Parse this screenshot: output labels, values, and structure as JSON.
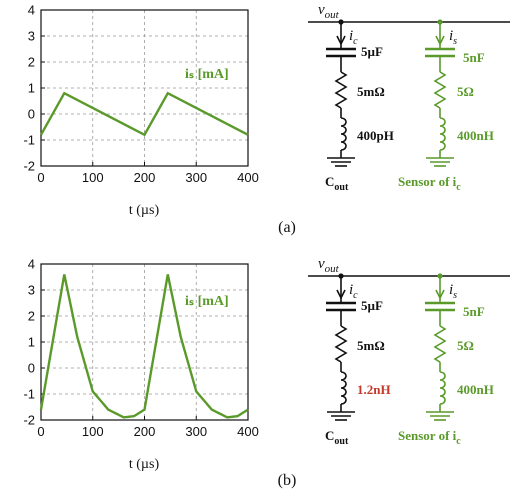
{
  "colors": {
    "green": "#5a9a2a",
    "red": "#c0392b",
    "black": "#111111",
    "grid": "#999999"
  },
  "chart_data": [
    {
      "type": "line",
      "panel_caption": "(a)",
      "xlabel": "t (µs)",
      "ylabel": "",
      "xlim": [
        0,
        400
      ],
      "ylim": [
        -2,
        4
      ],
      "x_ticks": [
        "0",
        "100",
        "200",
        "300",
        "400"
      ],
      "y_ticks": [
        "4",
        "3",
        "2",
        "1",
        "0",
        "-1",
        "-2"
      ],
      "grid": true,
      "series": [
        {
          "name": "iₛ [mA]",
          "x": [
            0,
            45,
            200,
            245,
            400
          ],
          "y": [
            -0.8,
            0.8,
            -0.8,
            0.8,
            -0.8
          ]
        }
      ]
    },
    {
      "type": "line",
      "panel_caption": "(b)",
      "xlabel": "t (µs)",
      "ylabel": "",
      "xlim": [
        0,
        400
      ],
      "ylim": [
        -2,
        4
      ],
      "x_ticks": [
        "0",
        "100",
        "200",
        "300",
        "400"
      ],
      "y_ticks": [
        "4",
        "3",
        "2",
        "1",
        "0",
        "-1",
        "-2"
      ],
      "grid": true,
      "series": [
        {
          "name": "iₛ [mA]",
          "x": [
            0,
            45,
            70,
            100,
            130,
            160,
            180,
            200,
            245,
            270,
            300,
            330,
            360,
            380,
            400
          ],
          "y": [
            -1.6,
            3.6,
            1.2,
            -0.9,
            -1.6,
            -1.9,
            -1.85,
            -1.6,
            3.6,
            1.2,
            -0.9,
            -1.6,
            -1.9,
            -1.85,
            -1.6
          ]
        }
      ]
    }
  ],
  "circuits": [
    {
      "vout": "v",
      "vout_sub": "out",
      "ic_label": "i",
      "ic_sub": "c",
      "is_label": "i",
      "is_sub": "s",
      "c_left": "5µF",
      "r_left": "5mΩ",
      "l_left": "400pH",
      "c_right": "5nF",
      "r_right": "5Ω",
      "l_right": "400nH",
      "left_name": "C",
      "left_name_sub": "out",
      "right_name": "Sensor of i",
      "right_name_sub": "c",
      "l_left_red": false
    },
    {
      "vout": "v",
      "vout_sub": "out",
      "ic_label": "i",
      "ic_sub": "c",
      "is_label": "i",
      "is_sub": "s",
      "c_left": "5µF",
      "r_left": "5mΩ",
      "l_left": "1.2nH",
      "c_right": "5nF",
      "r_right": "5Ω",
      "l_right": "400nH",
      "left_name": "C",
      "left_name_sub": "out",
      "right_name": "Sensor of i",
      "right_name_sub": "c",
      "l_left_red": true
    }
  ]
}
